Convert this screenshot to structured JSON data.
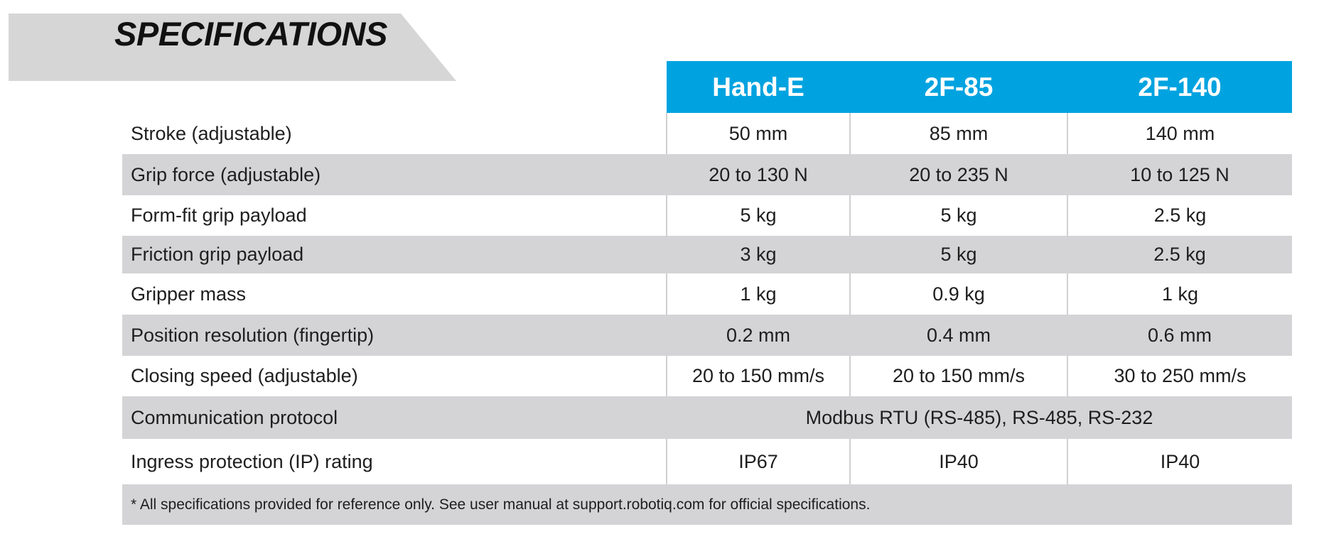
{
  "banner": {
    "title": "SPECIFICATIONS"
  },
  "table": {
    "columns": [
      "Hand-E",
      "2F-85",
      "2F-140"
    ],
    "header_color": "#00a3e0",
    "stripe_color": "#d4d4d6",
    "rows": [
      {
        "label": "Stroke (adjustable)",
        "values": [
          "50 mm",
          "85 mm",
          "140 mm"
        ]
      },
      {
        "label": "Grip force (adjustable)",
        "values": [
          "20 to 130 N",
          "20 to 235 N",
          "10 to 125 N"
        ]
      },
      {
        "label": "Form-fit grip payload",
        "values": [
          "5 kg",
          "5 kg",
          "2.5 kg"
        ]
      },
      {
        "label": "Friction grip payload",
        "values": [
          "3 kg",
          "5 kg",
          "2.5 kg"
        ]
      },
      {
        "label": "Gripper mass",
        "values": [
          "1 kg",
          "0.9 kg",
          "1 kg"
        ]
      },
      {
        "label": "Position resolution (fingertip)",
        "values": [
          "0.2 mm",
          "0.4 mm",
          "0.6 mm"
        ]
      },
      {
        "label": "Closing speed (adjustable)",
        "values": [
          "20 to 150 mm/s",
          "20 to 150 mm/s",
          "30 to 250 mm/s"
        ]
      },
      {
        "label": "Communication protocol",
        "merged_value": "Modbus RTU (RS-485), RS-485, RS-232"
      },
      {
        "label": "Ingress protection (IP) rating",
        "values": [
          "IP67",
          "IP40",
          "IP40"
        ]
      }
    ],
    "footnote": "* All specifications provided for reference only. See user manual at support.robotiq.com for official specifications."
  }
}
